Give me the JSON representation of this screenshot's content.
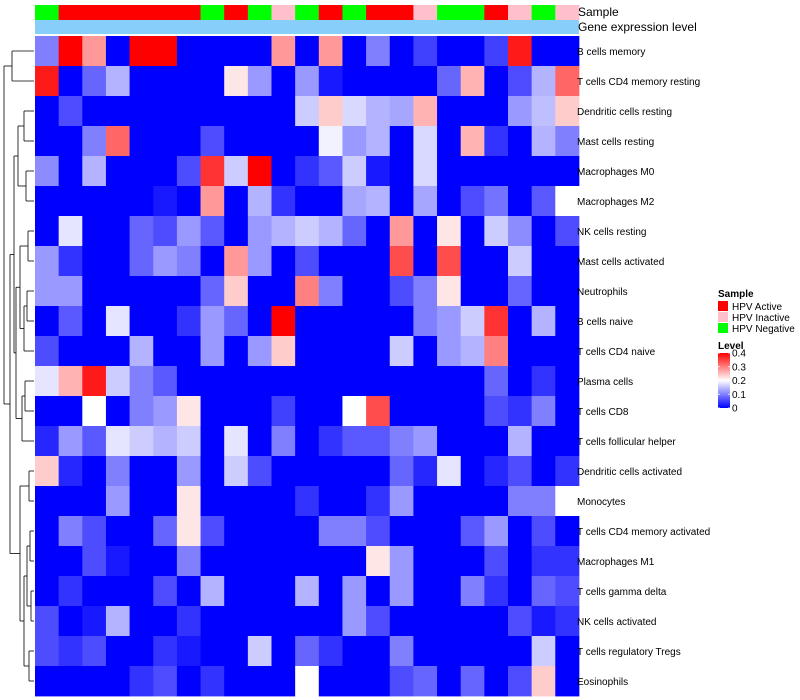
{
  "chart_data": {
    "type": "heatmap",
    "title": "",
    "annotation_tracks": [
      "Sample",
      "Gene expression level"
    ],
    "sample_groups": [
      "Negative",
      "Active",
      "Active",
      "Active",
      "Active",
      "Active",
      "Active",
      "Negative",
      "Active",
      "Negative",
      "Inactive",
      "Negative",
      "Active",
      "Negative",
      "Active",
      "Active",
      "Inactive",
      "Negative",
      "Negative",
      "Active",
      "Inactive",
      "Negative",
      "Inactive"
    ],
    "rows": [
      "B cells memory",
      "T cells CD4 memory resting",
      "Dendritic cells resting",
      "Mast cells resting",
      "Macrophages M0",
      "Macrophages M2",
      "NK cells resting",
      "Mast cells activated",
      "Neutrophils",
      "B cells naive",
      "T cells CD4 naive",
      "Plasma cells",
      "T cells CD8",
      "T cells follicular helper",
      "Dendritic cells activated",
      "Monocytes",
      "T cells CD4 memory activated",
      "Macrophages M1",
      "T cells gamma delta",
      "NK cells activated",
      "T cells regulatory  Tregs",
      "Eosinophils"
    ],
    "values": [
      [
        0.1,
        0.4,
        0.28,
        0.0,
        0.4,
        0.4,
        0.0,
        0.0,
        0.0,
        0.0,
        0.28,
        0.0,
        0.28,
        0.0,
        0.1,
        0.0,
        0.05,
        0.0,
        0.0,
        0.05,
        0.38,
        0.0,
        0.0
      ],
      [
        0.38,
        0.0,
        0.08,
        0.14,
        0.0,
        0.0,
        0.0,
        0.0,
        0.22,
        0.12,
        0.0,
        0.12,
        0.02,
        0.0,
        0.0,
        0.0,
        0.0,
        0.08,
        0.26,
        0.0,
        0.06,
        0.14,
        0.32
      ],
      [
        0.0,
        0.06,
        0.0,
        0.0,
        0.0,
        0.0,
        0.0,
        0.0,
        0.0,
        0.0,
        0.0,
        0.16,
        0.24,
        0.17,
        0.14,
        0.13,
        0.26,
        0.0,
        0.0,
        0.0,
        0.12,
        0.15,
        0.24
      ],
      [
        0.0,
        0.0,
        0.1,
        0.32,
        0.0,
        0.0,
        0.0,
        0.06,
        0.0,
        0.0,
        0.0,
        0.0,
        0.19,
        0.12,
        0.14,
        0.0,
        0.17,
        0.0,
        0.26,
        0.04,
        0.0,
        0.14,
        0.1
      ],
      [
        0.11,
        0.0,
        0.14,
        0.0,
        0.0,
        0.0,
        0.06,
        0.36,
        0.16,
        0.4,
        0.0,
        0.04,
        0.07,
        0.16,
        0.02,
        0.0,
        0.17,
        0.0,
        0.0,
        0.0,
        0.0,
        0.0,
        0.0
      ],
      [
        0.0,
        0.0,
        0.0,
        0.0,
        0.0,
        0.02,
        0.0,
        0.28,
        0.0,
        0.14,
        0.04,
        0.0,
        0.0,
        0.13,
        0.14,
        0.0,
        0.13,
        0.0,
        0.06,
        0.09,
        0.0,
        0.07,
        0.2
      ],
      [
        0.0,
        0.18,
        0.0,
        0.0,
        0.08,
        0.06,
        0.12,
        0.07,
        0.0,
        0.12,
        0.14,
        0.16,
        0.14,
        0.08,
        0.0,
        0.28,
        0.0,
        0.22,
        0.0,
        0.16,
        0.11,
        0.0,
        0.06
      ],
      [
        0.12,
        0.04,
        0.0,
        0.0,
        0.08,
        0.12,
        0.1,
        0.0,
        0.28,
        0.12,
        0.0,
        0.06,
        0.0,
        0.0,
        0.0,
        0.34,
        0.0,
        0.34,
        0.0,
        0.0,
        0.16,
        0.0,
        0.0
      ],
      [
        0.12,
        0.12,
        0.0,
        0.0,
        0.0,
        0.0,
        0.0,
        0.08,
        0.24,
        0.0,
        0.0,
        0.3,
        0.1,
        0.0,
        0.0,
        0.06,
        0.1,
        0.22,
        0.0,
        0.0,
        0.08,
        0.0,
        0.0
      ],
      [
        0.0,
        0.07,
        0.0,
        0.18,
        0.0,
        0.0,
        0.04,
        0.12,
        0.08,
        0.0,
        0.4,
        0.0,
        0.0,
        0.0,
        0.0,
        0.0,
        0.1,
        0.12,
        0.16,
        0.36,
        0.0,
        0.14,
        0.0
      ],
      [
        0.06,
        0.0,
        0.0,
        0.0,
        0.14,
        0.0,
        0.0,
        0.12,
        0.0,
        0.12,
        0.24,
        0.0,
        0.0,
        0.0,
        0.0,
        0.16,
        0.0,
        0.12,
        0.14,
        0.3,
        0.0,
        0.0,
        0.0
      ],
      [
        0.18,
        0.26,
        0.38,
        0.16,
        0.1,
        0.07,
        0.0,
        0.0,
        0.0,
        0.0,
        0.0,
        0.0,
        0.0,
        0.0,
        0.0,
        0.0,
        0.0,
        0.0,
        0.0,
        0.08,
        0.0,
        0.04,
        0.0
      ],
      [
        0.0,
        0.0,
        0.2,
        0.0,
        0.1,
        0.12,
        0.22,
        0.0,
        0.0,
        0.0,
        0.05,
        0.0,
        0.0,
        0.2,
        0.34,
        0.0,
        0.0,
        0.0,
        0.0,
        0.06,
        0.04,
        0.1,
        0.0
      ],
      [
        0.03,
        0.12,
        0.07,
        0.18,
        0.16,
        0.14,
        0.16,
        0.0,
        0.18,
        0.0,
        0.1,
        0.0,
        0.04,
        0.07,
        0.07,
        0.1,
        0.12,
        0.0,
        0.0,
        0.0,
        0.14,
        0.0,
        0.0
      ],
      [
        0.24,
        0.03,
        0.0,
        0.1,
        0.0,
        0.0,
        0.12,
        0.0,
        0.16,
        0.06,
        0.0,
        0.0,
        0.0,
        0.0,
        0.0,
        0.08,
        0.03,
        0.18,
        0.0,
        0.03,
        0.06,
        0.0,
        0.04
      ],
      [
        0.0,
        0.0,
        0.0,
        0.12,
        0.0,
        0.0,
        0.22,
        0.0,
        0.0,
        0.0,
        0.0,
        0.04,
        0.0,
        0.0,
        0.04,
        0.12,
        0.0,
        0.0,
        0.0,
        0.0,
        0.1,
        0.1,
        0.2
      ],
      [
        0.0,
        0.1,
        0.06,
        0.0,
        0.0,
        0.08,
        0.22,
        0.06,
        0.0,
        0.0,
        0.0,
        0.0,
        0.1,
        0.1,
        0.06,
        0.0,
        0.0,
        0.0,
        0.07,
        0.12,
        0.0,
        0.06,
        0.0
      ],
      [
        0.0,
        0.0,
        0.06,
        0.02,
        0.0,
        0.0,
        0.1,
        0.0,
        0.0,
        0.0,
        0.0,
        0.0,
        0.0,
        0.0,
        0.22,
        0.12,
        0.0,
        0.0,
        0.0,
        0.06,
        0.0,
        0.04,
        0.04
      ],
      [
        0.0,
        0.04,
        0.0,
        0.0,
        0.0,
        0.06,
        0.0,
        0.14,
        0.0,
        0.0,
        0.0,
        0.14,
        0.0,
        0.12,
        0.0,
        0.12,
        0.0,
        0.0,
        0.1,
        0.04,
        0.0,
        0.08,
        0.06
      ],
      [
        0.06,
        0.0,
        0.02,
        0.14,
        0.0,
        0.0,
        0.04,
        0.0,
        0.0,
        0.0,
        0.0,
        0.0,
        0.0,
        0.12,
        0.06,
        0.0,
        0.0,
        0.0,
        0.0,
        0.0,
        0.06,
        0.02,
        0.04
      ],
      [
        0.06,
        0.04,
        0.06,
        0.0,
        0.0,
        0.04,
        0.02,
        0.0,
        0.0,
        0.16,
        0.0,
        0.08,
        0.04,
        0.0,
        0.0,
        0.1,
        0.0,
        0.0,
        0.0,
        0.0,
        0.0,
        0.16,
        0.0
      ],
      [
        0.0,
        0.0,
        0.0,
        0.0,
        0.04,
        0.06,
        0.0,
        0.04,
        0.0,
        0.0,
        0.0,
        0.2,
        0.0,
        0.0,
        0.0,
        0.06,
        0.08,
        0.0,
        0.08,
        0.0,
        0.06,
        0.24,
        0.0
      ]
    ],
    "color_scale": {
      "min": 0,
      "max": 0.4,
      "low": "#0000ff",
      "mid": "#ffffff",
      "high": "#ff0000",
      "mid_value": 0.2
    },
    "legend": {
      "sample_title": "Sample",
      "sample_items": [
        {
          "label": "HPV Active",
          "key": "Active",
          "color": "#ff0000"
        },
        {
          "label": "HPV Inactive",
          "key": "Inactive",
          "color": "#ffc0cb"
        },
        {
          "label": "HPV Negative",
          "key": "Negative",
          "color": "#00ff00"
        }
      ],
      "level_title": "Level",
      "level_ticks": [
        "0.4",
        "0.3",
        "0.2",
        "0.1",
        "0"
      ],
      "level_tick_values": [
        0.4,
        0.3,
        0.2,
        0.1,
        0
      ]
    },
    "expression_bar_color": "#87cefa"
  }
}
